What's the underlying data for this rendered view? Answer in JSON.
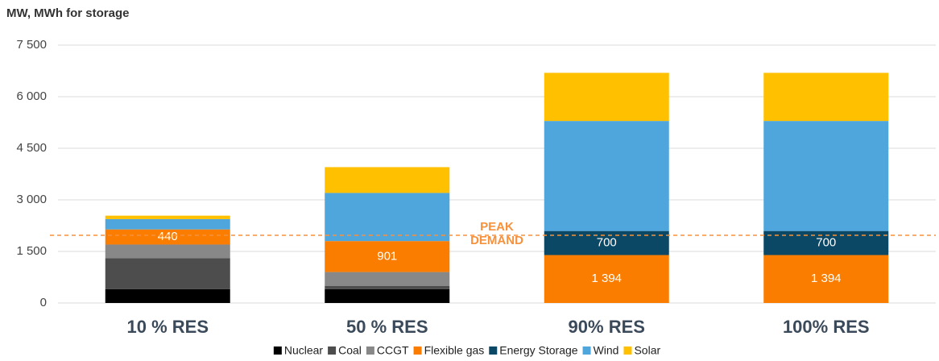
{
  "chart_data": {
    "type": "stacked_bar",
    "y_axis_label": "MW, MWh for storage",
    "categories": [
      "10 % RES",
      "50 % RES",
      "90% RES",
      "100% RES"
    ],
    "series": [
      {
        "name": "Nuclear",
        "color": "#000000",
        "values": [
          400,
          400,
          0,
          0
        ]
      },
      {
        "name": "Coal",
        "color": "#4d4d4d",
        "values": [
          900,
          100,
          0,
          0
        ]
      },
      {
        "name": "CCGT",
        "color": "#888888",
        "values": [
          400,
          400,
          0,
          0
        ]
      },
      {
        "name": "Flexible gas",
        "color": "#fb7d00",
        "values": [
          440,
          901,
          1394,
          1394
        ],
        "value_labels": [
          "440",
          "901",
          "1 394",
          "1 394"
        ]
      },
      {
        "name": "Energy Storage",
        "color": "#0b4866",
        "values": [
          0,
          0,
          700,
          700
        ],
        "value_labels": [
          null,
          null,
          "700",
          "700"
        ]
      },
      {
        "name": "Wind",
        "color": "#4ea6dc",
        "values": [
          300,
          1400,
          3200,
          3200
        ]
      },
      {
        "name": "Solar",
        "color": "#ffc000",
        "values": [
          100,
          750,
          1400,
          1400
        ]
      }
    ],
    "ylim": [
      0,
      7500
    ],
    "yticks": [
      0,
      {
        "value": 1500,
        "label": "1 500"
      },
      {
        "value": 3000,
        "label": "3 000"
      },
      {
        "value": 4500,
        "label": "4 500"
      },
      {
        "value": 6000,
        "label": "6 000"
      },
      {
        "value": 7500,
        "label": "7 500"
      }
    ],
    "grid": true,
    "peak_demand": {
      "value": 1970,
      "label_lines": [
        "PEAK",
        "DEMAND"
      ],
      "color": "#f7913c"
    },
    "legend": "bottom"
  }
}
